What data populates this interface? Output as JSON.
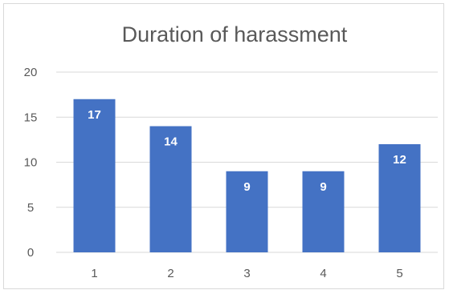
{
  "chart_data": {
    "type": "bar",
    "title": "Duration of harassment",
    "categories": [
      "1",
      "2",
      "3",
      "4",
      "5"
    ],
    "values": [
      17,
      14,
      9,
      9,
      12
    ],
    "xlabel": "",
    "ylabel": "",
    "ylim": [
      0,
      20
    ],
    "yticks": [
      "0",
      "5",
      "10",
      "15",
      "20"
    ],
    "grid": true,
    "legend": "none",
    "bar_color": "#4472c4",
    "grid_color": "#d9d9d9",
    "label_color": "#ffffff"
  }
}
